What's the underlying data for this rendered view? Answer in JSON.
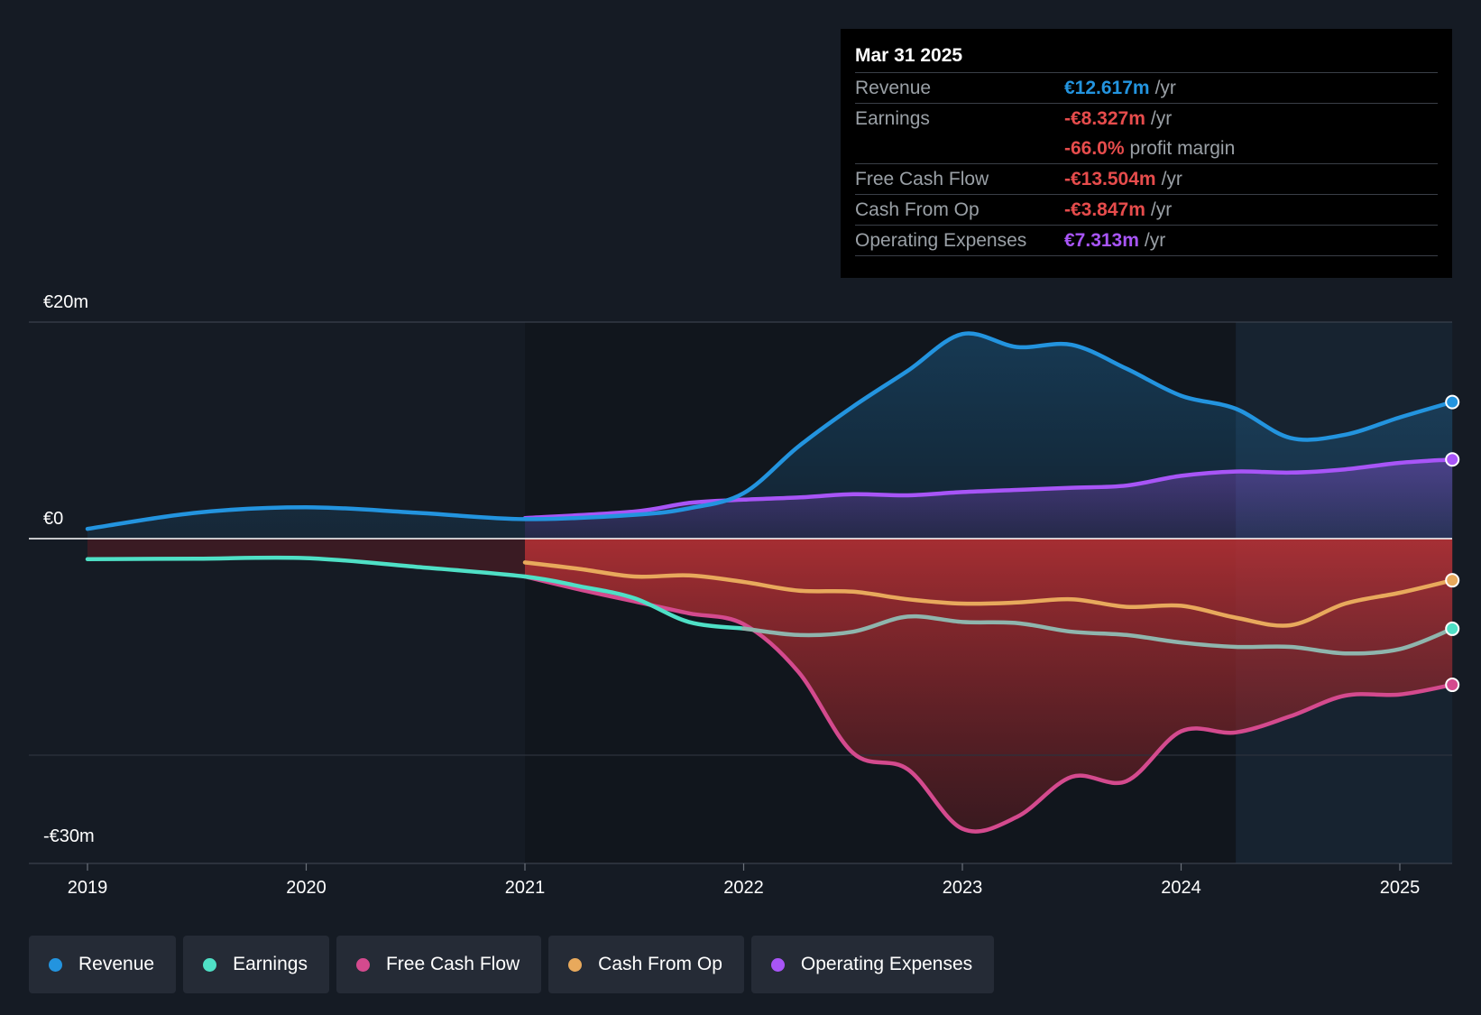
{
  "chart_data": {
    "type": "line",
    "title": "",
    "xlabel": "",
    "ylabel": "",
    "x_ticks": [
      "2019",
      "2020",
      "2021",
      "2022",
      "2023",
      "2024",
      "2025"
    ],
    "y_ticks": [
      {
        "value": 20,
        "label": "€20m"
      },
      {
        "value": 0,
        "label": "€0"
      },
      {
        "value": -30,
        "label": "-€30m"
      }
    ],
    "ylim": [
      -30,
      20
    ],
    "xlim": [
      2018.73,
      2025.24
    ],
    "forecast_start": 2024.25,
    "legend_position": "bottom",
    "series": [
      {
        "name": "Revenue",
        "color": "#2394df",
        "fill": true,
        "points": [
          [
            2019.0,
            0.9
          ],
          [
            2019.5,
            2.4
          ],
          [
            2020.0,
            2.9
          ],
          [
            2020.5,
            2.4
          ],
          [
            2021.0,
            1.8
          ],
          [
            2021.5,
            2.2
          ],
          [
            2021.75,
            2.8
          ],
          [
            2022.0,
            4.2
          ],
          [
            2022.25,
            8.5
          ],
          [
            2022.5,
            12.2
          ],
          [
            2022.75,
            15.5
          ],
          [
            2023.0,
            18.9
          ],
          [
            2023.25,
            17.7
          ],
          [
            2023.5,
            17.9
          ],
          [
            2023.75,
            15.7
          ],
          [
            2024.0,
            13.2
          ],
          [
            2024.25,
            12.0
          ],
          [
            2024.5,
            9.3
          ],
          [
            2024.75,
            9.6
          ],
          [
            2025.0,
            11.2
          ],
          [
            2025.24,
            12.617
          ]
        ]
      },
      {
        "name": "Earnings",
        "color": "#4fe0c6",
        "fill": true,
        "points": [
          [
            2019.0,
            -1.9
          ],
          [
            2019.5,
            -1.85
          ],
          [
            2020.0,
            -1.8
          ],
          [
            2020.5,
            -2.6
          ],
          [
            2021.0,
            -3.5
          ],
          [
            2021.25,
            -4.4
          ],
          [
            2021.5,
            -5.5
          ],
          [
            2021.75,
            -7.7
          ],
          [
            2022.0,
            -8.3
          ],
          [
            2022.25,
            -8.9
          ],
          [
            2022.5,
            -8.6
          ],
          [
            2022.75,
            -7.2
          ],
          [
            2023.0,
            -7.7
          ],
          [
            2023.25,
            -7.8
          ],
          [
            2023.5,
            -8.6
          ],
          [
            2023.75,
            -8.9
          ],
          [
            2024.0,
            -9.6
          ],
          [
            2024.25,
            -10.0
          ],
          [
            2024.5,
            -10.0
          ],
          [
            2024.75,
            -10.6
          ],
          [
            2025.0,
            -10.2
          ],
          [
            2025.24,
            -8.327
          ]
        ]
      },
      {
        "name": "Free Cash Flow",
        "color": "#d44a8e",
        "fill": true,
        "points": [
          [
            2021.0,
            -3.5
          ],
          [
            2021.25,
            -4.7
          ],
          [
            2021.5,
            -5.8
          ],
          [
            2021.75,
            -6.9
          ],
          [
            2022.0,
            -7.9
          ],
          [
            2022.25,
            -12.3
          ],
          [
            2022.5,
            -19.8
          ],
          [
            2022.75,
            -21.3
          ],
          [
            2023.0,
            -26.8
          ],
          [
            2023.25,
            -25.7
          ],
          [
            2023.5,
            -22.0
          ],
          [
            2023.75,
            -22.4
          ],
          [
            2024.0,
            -17.8
          ],
          [
            2024.25,
            -17.9
          ],
          [
            2024.5,
            -16.4
          ],
          [
            2024.75,
            -14.5
          ],
          [
            2025.0,
            -14.4
          ],
          [
            2025.24,
            -13.504
          ]
        ]
      },
      {
        "name": "Cash From Op",
        "color": "#e8a95c",
        "fill": false,
        "points": [
          [
            2021.0,
            -2.2
          ],
          [
            2021.25,
            -2.8
          ],
          [
            2021.5,
            -3.5
          ],
          [
            2021.75,
            -3.4
          ],
          [
            2022.0,
            -4.0
          ],
          [
            2022.25,
            -4.8
          ],
          [
            2022.5,
            -4.9
          ],
          [
            2022.75,
            -5.6
          ],
          [
            2023.0,
            -6.0
          ],
          [
            2023.25,
            -5.9
          ],
          [
            2023.5,
            -5.6
          ],
          [
            2023.75,
            -6.3
          ],
          [
            2024.0,
            -6.2
          ],
          [
            2024.25,
            -7.3
          ],
          [
            2024.5,
            -8.0
          ],
          [
            2024.75,
            -6.0
          ],
          [
            2025.0,
            -5.0
          ],
          [
            2025.24,
            -3.847
          ]
        ]
      },
      {
        "name": "Operating Expenses",
        "color": "#a855f7",
        "fill": true,
        "points": [
          [
            2021.0,
            1.9
          ],
          [
            2021.5,
            2.5
          ],
          [
            2021.75,
            3.3
          ],
          [
            2022.0,
            3.6
          ],
          [
            2022.25,
            3.8
          ],
          [
            2022.5,
            4.1
          ],
          [
            2022.75,
            4.0
          ],
          [
            2023.0,
            4.3
          ],
          [
            2023.25,
            4.5
          ],
          [
            2023.5,
            4.7
          ],
          [
            2023.75,
            4.9
          ],
          [
            2024.0,
            5.8
          ],
          [
            2024.25,
            6.2
          ],
          [
            2024.5,
            6.1
          ],
          [
            2024.75,
            6.4
          ],
          [
            2025.0,
            7.0
          ],
          [
            2025.24,
            7.313
          ]
        ]
      }
    ]
  },
  "tooltip": {
    "date": "Mar 31 2025",
    "rows": [
      {
        "label": "Revenue",
        "value": "€12.617m",
        "unit": "/yr"
      },
      {
        "label": "Earnings",
        "value": "-€8.327m",
        "unit": "/yr"
      },
      {
        "label": "",
        "value": "-66.0%",
        "unit": "profit margin"
      },
      {
        "label": "Free Cash Flow",
        "value": "-€13.504m",
        "unit": "/yr"
      },
      {
        "label": "Cash From Op",
        "value": "-€3.847m",
        "unit": "/yr"
      },
      {
        "label": "Operating Expenses",
        "value": "€7.313m",
        "unit": "/yr"
      }
    ]
  },
  "legend": [
    {
      "label": "Revenue",
      "color": "#2394df"
    },
    {
      "label": "Earnings",
      "color": "#4fe0c6"
    },
    {
      "label": "Free Cash Flow",
      "color": "#d44a8e"
    },
    {
      "label": "Cash From Op",
      "color": "#e8a95c"
    },
    {
      "label": "Operating Expenses",
      "color": "#a855f7"
    }
  ]
}
